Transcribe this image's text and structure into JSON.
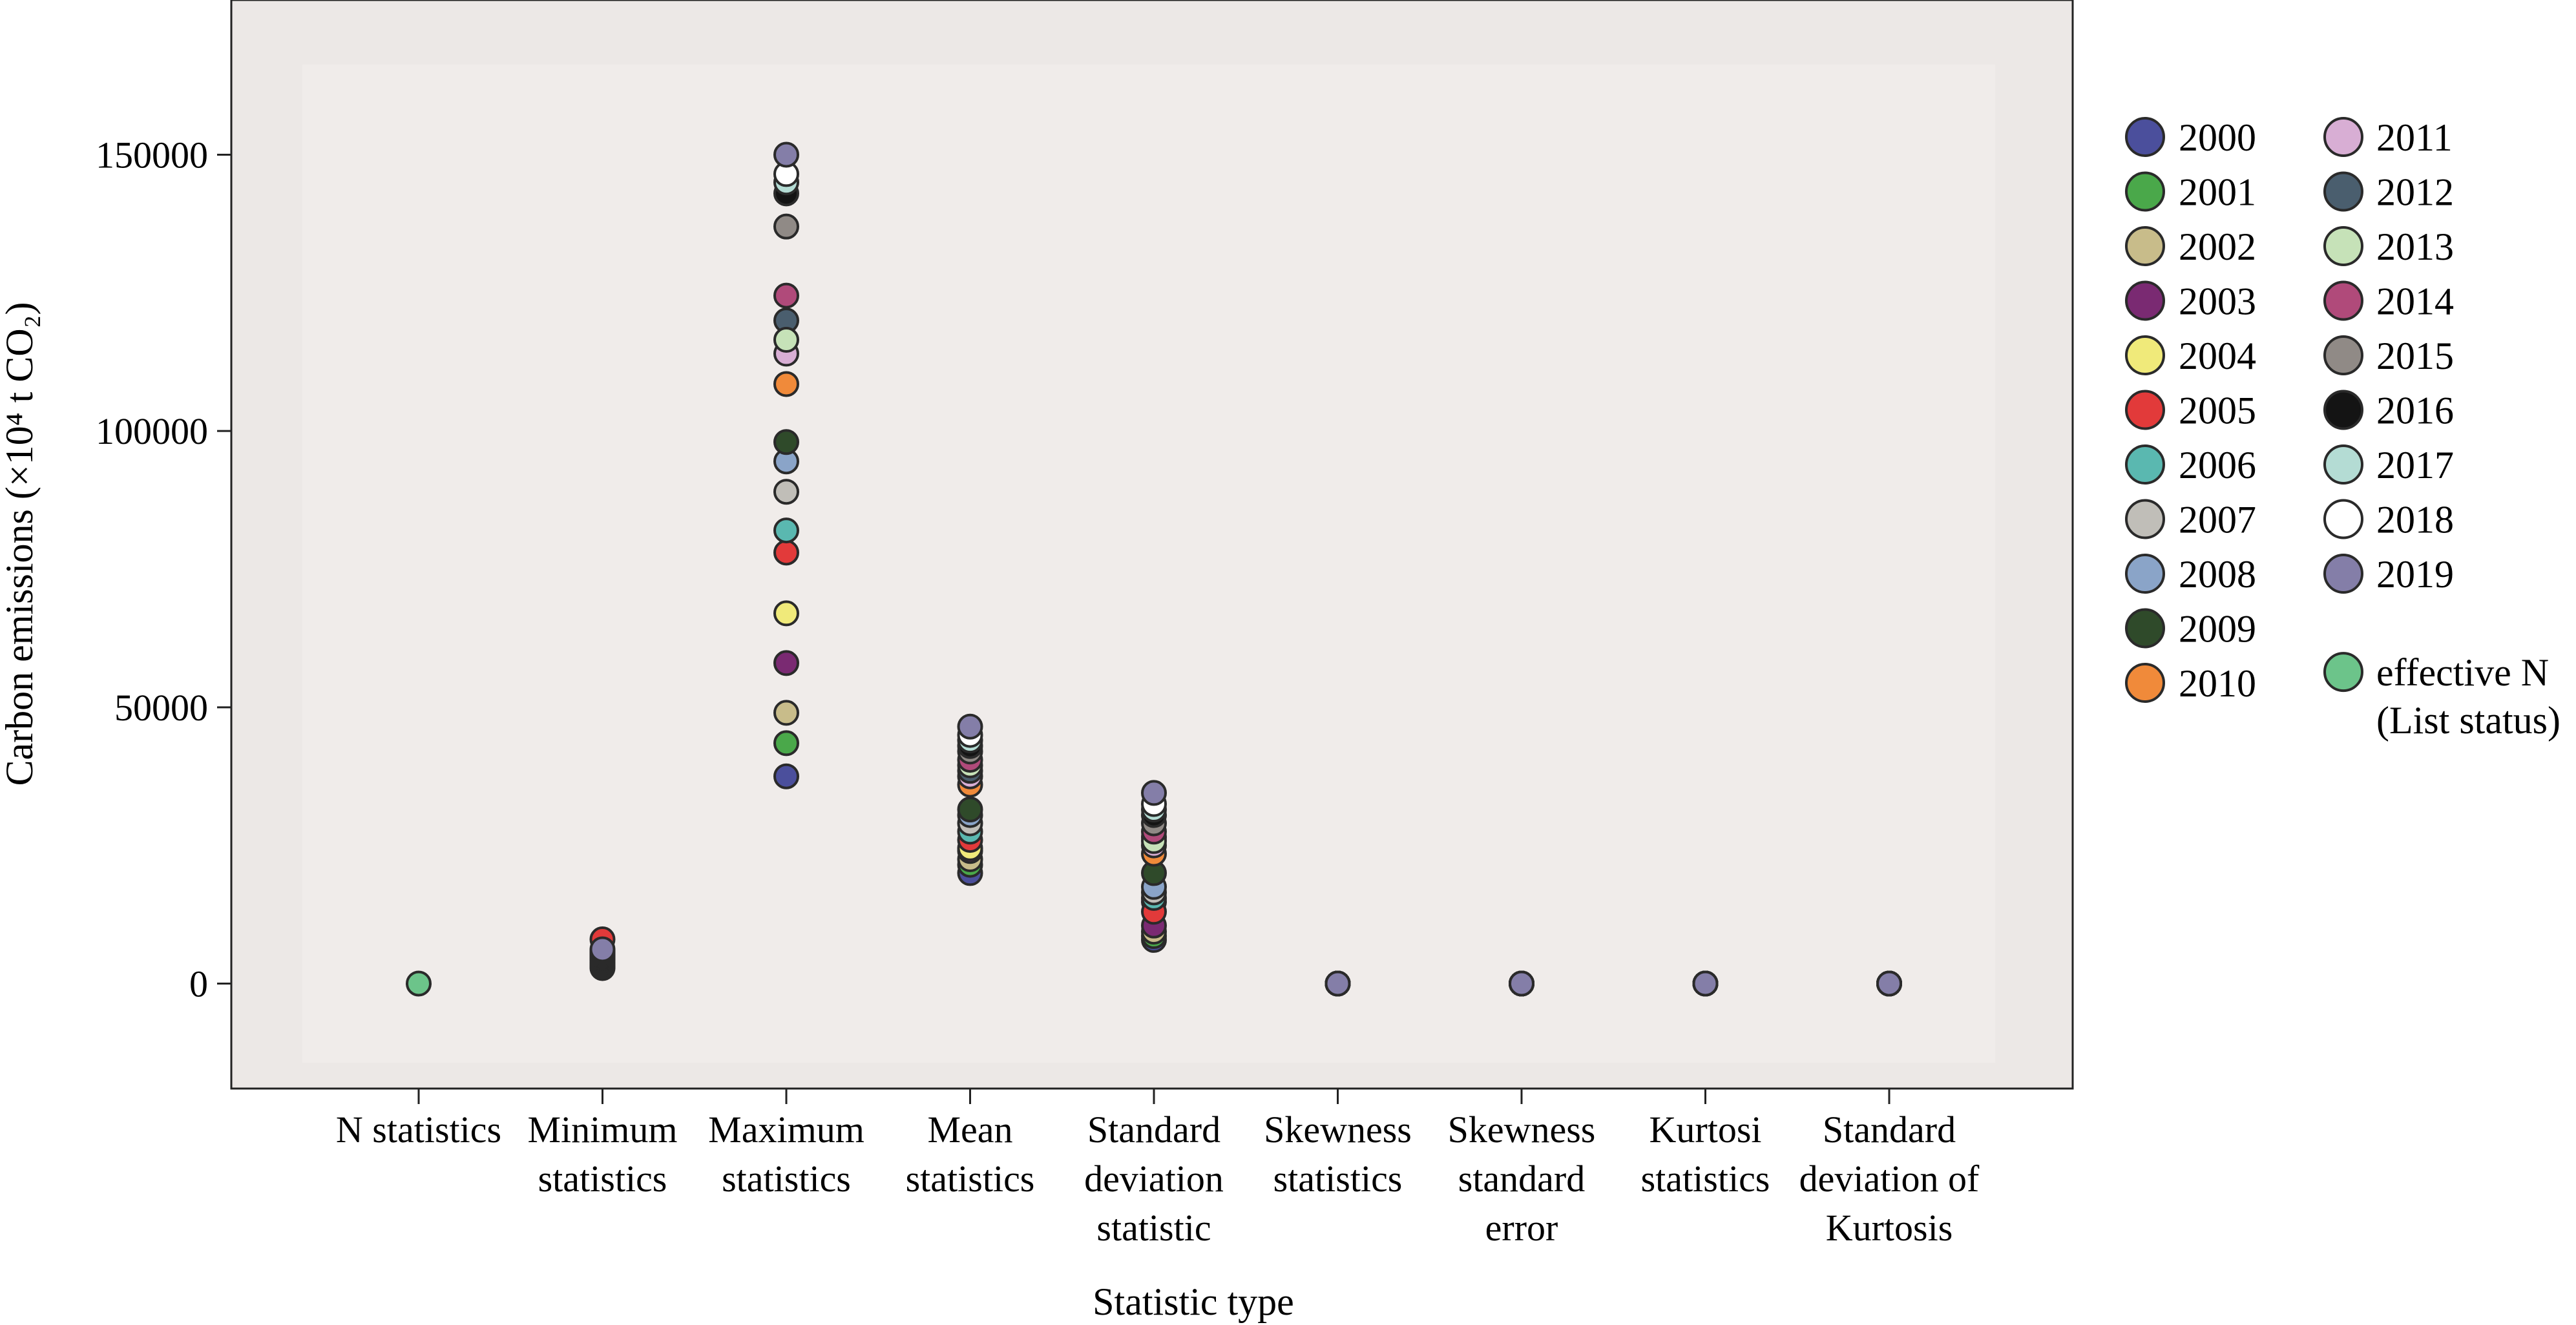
{
  "chart_data": {
    "type": "scatter",
    "ylabel": "Carbon emissions (×10⁴ t CO₂)",
    "xlabel": "Statistic type",
    "ylim": [
      -19000,
      178000
    ],
    "yticks": [
      0,
      50000,
      100000,
      150000
    ],
    "grid": false,
    "legend_position": "right",
    "categories": [
      [
        "N statistics"
      ],
      [
        "Minimum",
        "statistics"
      ],
      [
        "Maximum",
        "statistics"
      ],
      [
        "Mean",
        "statistics"
      ],
      [
        "Standard",
        "deviation",
        "statistic"
      ],
      [
        "Skewness",
        "statistics"
      ],
      [
        "Skewness",
        "standard",
        "error"
      ],
      [
        "Kurtosi",
        "statistics"
      ],
      [
        "Standard",
        "deviation of",
        "Kurtosis"
      ]
    ],
    "series": [
      {
        "name": "2000",
        "color": "#4b4f9c",
        "values": [
          null,
          2800,
          37500,
          20000,
          7900,
          0,
          0,
          0,
          0
        ]
      },
      {
        "name": "2001",
        "color": "#4aa84a",
        "values": [
          null,
          3000,
          43500,
          21500,
          8600,
          0,
          0,
          0,
          0
        ]
      },
      {
        "name": "2002",
        "color": "#c8bc8a",
        "values": [
          null,
          3200,
          49000,
          22500,
          9400,
          0,
          0,
          0,
          0
        ]
      },
      {
        "name": "2003",
        "color": "#7a2a72",
        "values": [
          null,
          3500,
          58000,
          24000,
          10500,
          0,
          0,
          0,
          0
        ]
      },
      {
        "name": "2004",
        "color": "#f0ea7a",
        "values": [
          null,
          3800,
          67000,
          24500,
          14800,
          0,
          0,
          0,
          0
        ]
      },
      {
        "name": "2005",
        "color": "#e23a3a",
        "values": [
          null,
          8000,
          78000,
          26000,
          13000,
          0,
          0,
          0,
          0
        ]
      },
      {
        "name": "2006",
        "color": "#5ab8b0",
        "values": [
          null,
          4200,
          82000,
          27500,
          15500,
          0,
          0,
          0,
          0
        ]
      },
      {
        "name": "2007",
        "color": "#c0beb8",
        "values": [
          null,
          4400,
          89000,
          29000,
          16500,
          0,
          0,
          0,
          0
        ]
      },
      {
        "name": "2008",
        "color": "#8aa4c8",
        "values": [
          null,
          4600,
          94500,
          30500,
          17500,
          0,
          0,
          0,
          0
        ]
      },
      {
        "name": "2009",
        "color": "#2f4a2a",
        "values": [
          null,
          4700,
          98000,
          31500,
          20000,
          0,
          0,
          0,
          0
        ]
      },
      {
        "name": "2010",
        "color": "#f08a3a",
        "values": [
          null,
          4800,
          108500,
          36000,
          23500,
          0,
          0,
          0,
          0
        ]
      },
      {
        "name": "2011",
        "color": "#d8aed4",
        "values": [
          null,
          4900,
          114000,
          37500,
          25000,
          0,
          0,
          0,
          0
        ]
      },
      {
        "name": "2012",
        "color": "#4a5e6e",
        "values": [
          null,
          5000,
          120000,
          38500,
          26500,
          0,
          0,
          0,
          0
        ]
      },
      {
        "name": "2013",
        "color": "#c6e2b8",
        "values": [
          null,
          5100,
          116500,
          39500,
          25800,
          0,
          0,
          0,
          0
        ]
      },
      {
        "name": "2014",
        "color": "#b04a7a",
        "values": [
          null,
          5200,
          124500,
          40500,
          27500,
          0,
          0,
          0,
          0
        ]
      },
      {
        "name": "2015",
        "color": "#908a86",
        "values": [
          null,
          5400,
          137000,
          42000,
          29000,
          0,
          0,
          0,
          0
        ]
      },
      {
        "name": "2016",
        "color": "#141414",
        "values": [
          null,
          5600,
          143000,
          43000,
          30500,
          0,
          0,
          0,
          0
        ]
      },
      {
        "name": "2017",
        "color": "#b4dcd4",
        "values": [
          null,
          5800,
          145000,
          44000,
          31500,
          0,
          0,
          0,
          0
        ]
      },
      {
        "name": "2018",
        "color": "#ffffff",
        "values": [
          null,
          6000,
          146500,
          45000,
          32500,
          0,
          0,
          0,
          0
        ]
      },
      {
        "name": "2019",
        "color": "#847ea8",
        "values": [
          null,
          6200,
          150000,
          46500,
          34500,
          0,
          0,
          0,
          0
        ]
      },
      {
        "name": "effective N\n(List status)",
        "color": "#6cc48a",
        "values": [
          0,
          null,
          null,
          null,
          null,
          null,
          null,
          null,
          null
        ]
      }
    ]
  }
}
